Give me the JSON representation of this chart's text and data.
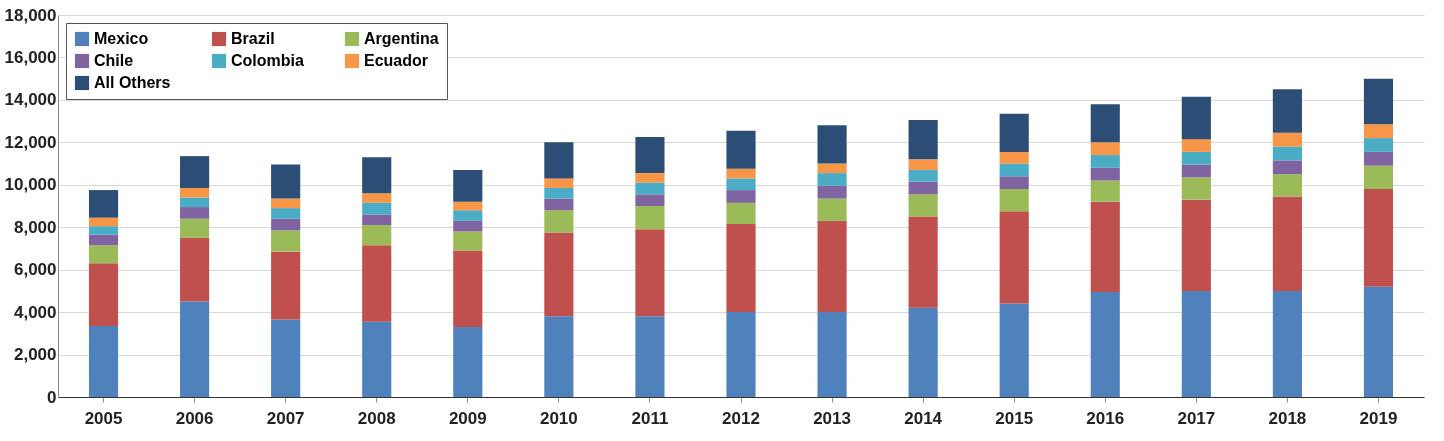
{
  "chart_data": {
    "type": "bar",
    "stacked": true,
    "categories": [
      "2005",
      "2006",
      "2007",
      "2008",
      "2009",
      "2010",
      "2011",
      "2012",
      "2013",
      "2014",
      "2015",
      "2016",
      "2017",
      "2018",
      "2019"
    ],
    "series": [
      {
        "name": "Mexico",
        "color": "#4f81bd",
        "values": [
          3350,
          4500,
          3650,
          3550,
          3300,
          3800,
          3800,
          4000,
          4000,
          4200,
          4400,
          4950,
          5000,
          5000,
          5200
        ]
      },
      {
        "name": "Brazil",
        "color": "#c0504d",
        "values": [
          2950,
          3000,
          3200,
          3600,
          3600,
          3950,
          4100,
          4150,
          4300,
          4300,
          4350,
          4250,
          4300,
          4450,
          4600
        ]
      },
      {
        "name": "Argentina",
        "color": "#9bbb59",
        "values": [
          850,
          900,
          1000,
          950,
          900,
          1050,
          1100,
          1000,
          1050,
          1050,
          1050,
          1000,
          1050,
          1050,
          1100
        ]
      },
      {
        "name": "Chile",
        "color": "#8064a2",
        "values": [
          500,
          550,
          550,
          500,
          500,
          550,
          550,
          600,
          600,
          600,
          600,
          600,
          600,
          650,
          650
        ]
      },
      {
        "name": "Colombia",
        "color": "#4bacc6",
        "values": [
          400,
          450,
          500,
          550,
          500,
          500,
          550,
          550,
          600,
          550,
          600,
          600,
          600,
          650,
          650
        ]
      },
      {
        "name": "Ecuador",
        "color": "#f79646",
        "values": [
          400,
          450,
          450,
          450,
          400,
          450,
          450,
          450,
          450,
          500,
          550,
          600,
          600,
          650,
          650
        ]
      },
      {
        "name": "All Others",
        "color": "#2c4d75",
        "values": [
          1300,
          1500,
          1600,
          1700,
          1500,
          1700,
          1700,
          1800,
          1800,
          1850,
          1800,
          1800,
          2000,
          2050,
          2150
        ]
      }
    ],
    "ylim": [
      0,
      18000
    ],
    "yticks": [
      {
        "value": 0,
        "label": "0"
      },
      {
        "value": 2000,
        "label": "2,000"
      },
      {
        "value": 4000,
        "label": "4,000"
      },
      {
        "value": 6000,
        "label": "6,000"
      },
      {
        "value": 8000,
        "label": "8,000"
      },
      {
        "value": 10000,
        "label": "10,000"
      },
      {
        "value": 12000,
        "label": "12,000"
      },
      {
        "value": 14000,
        "label": "14,000"
      },
      {
        "value": 16000,
        "label": "16,000"
      },
      {
        "value": 18000,
        "label": "18,000"
      }
    ],
    "grid": "y",
    "legend": "top left"
  }
}
